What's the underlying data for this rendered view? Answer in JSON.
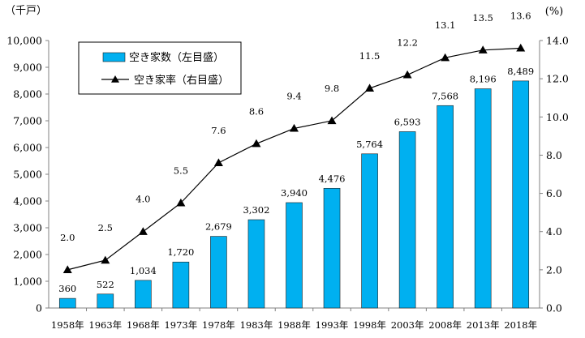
{
  "chart_data": {
    "type": "bar",
    "categories": [
      "1958年",
      "1963年",
      "1968年",
      "1973年",
      "1978年",
      "1983年",
      "1988年",
      "1993年",
      "1998年",
      "2003年",
      "2008年",
      "2013年",
      "2018年"
    ],
    "series": [
      {
        "name": "空き家数（左目盛）",
        "type": "bar",
        "axis": "left",
        "color": "#00B0F0",
        "values": [
          360,
          522,
          1034,
          1720,
          2679,
          3302,
          3940,
          4476,
          5764,
          6593,
          7568,
          8196,
          8489
        ],
        "labels": [
          "360",
          "522",
          "1,034",
          "1,720",
          "2,679",
          "3,302",
          "3,940",
          "4,476",
          "5,764",
          "6,593",
          "7,568",
          "8,196",
          "8,489"
        ]
      },
      {
        "name": "空き家率（右目盛）",
        "type": "line",
        "axis": "right",
        "color": "#000000",
        "marker": "triangle",
        "values": [
          2.0,
          2.5,
          4.0,
          5.5,
          7.6,
          8.6,
          9.4,
          9.8,
          11.5,
          12.2,
          13.1,
          13.5,
          13.6
        ],
        "labels": [
          "2.0",
          "2.5",
          "4.0",
          "5.5",
          "7.6",
          "8.6",
          "9.4",
          "9.8",
          "11.5",
          "12.2",
          "13.1",
          "13.5",
          "13.6"
        ]
      }
    ],
    "y_left": {
      "unit": "（千戸）",
      "ylim": [
        0,
        10000
      ],
      "ticks": [
        0,
        1000,
        2000,
        3000,
        4000,
        5000,
        6000,
        7000,
        8000,
        9000,
        10000
      ],
      "tick_labels": [
        "0",
        "1,000",
        "2,000",
        "3,000",
        "4,000",
        "5,000",
        "6,000",
        "7,000",
        "8,000",
        "9,000",
        "10,000"
      ]
    },
    "y_right": {
      "unit": "(%)",
      "ylim": [
        0,
        14
      ],
      "ticks": [
        0,
        2,
        4,
        6,
        8,
        10,
        12,
        14
      ],
      "tick_labels": [
        "0.0",
        "2.0",
        "4.0",
        "6.0",
        "8.0",
        "10.0",
        "12.0",
        "14.0"
      ]
    },
    "grid": false,
    "legend": {
      "placement": "top-left"
    }
  }
}
